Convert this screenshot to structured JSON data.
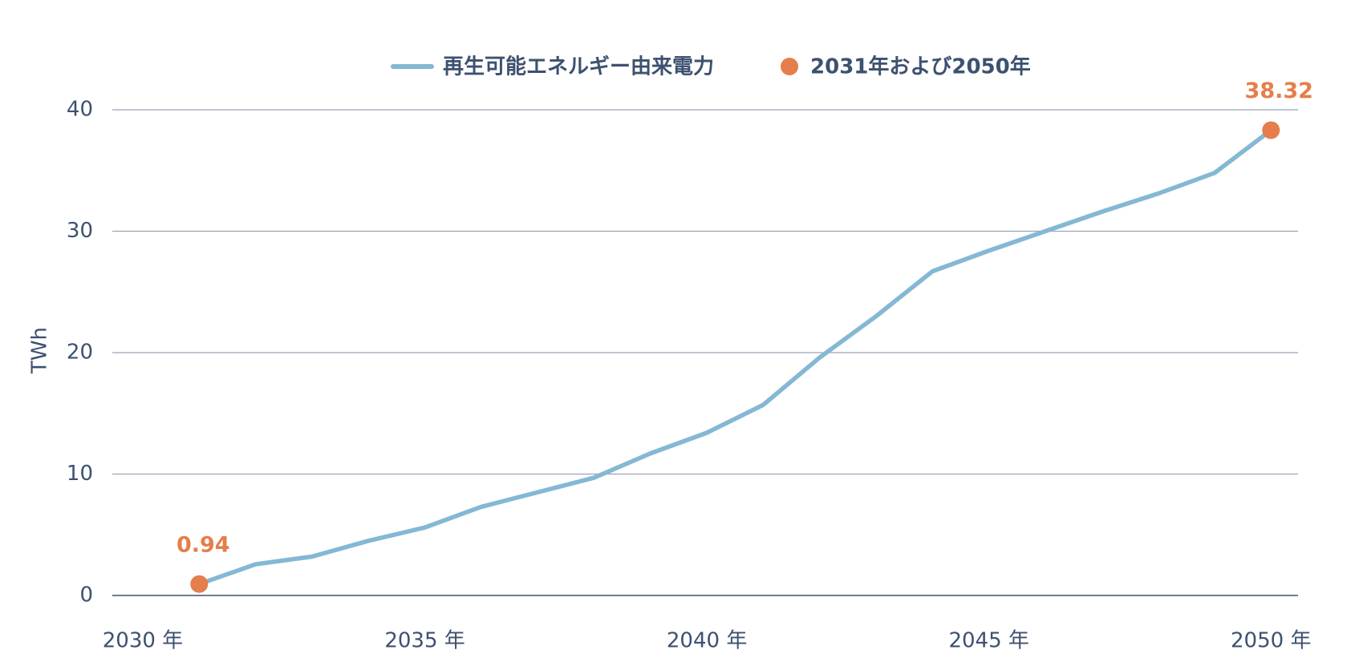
{
  "chart_data": {
    "type": "line",
    "y_label": "TWh",
    "x": [
      2031,
      2032,
      2033,
      2034,
      2035,
      2036,
      2037,
      2038,
      2039,
      2040,
      2041,
      2042,
      2043,
      2044,
      2045,
      2046,
      2047,
      2048,
      2049,
      2050
    ],
    "series": [
      {
        "name": "再生可能エネルギー由来電力",
        "color": "#84b8d4",
        "type": "line",
        "values": [
          0.94,
          2.57,
          3.2,
          4.5,
          5.6,
          7.3,
          8.5,
          9.7,
          11.7,
          13.4,
          15.7,
          19.6,
          23.0,
          26.7,
          28.4,
          30.0,
          31.6,
          33.1,
          34.8,
          38.32
        ]
      },
      {
        "name": "2031年および2050年",
        "color": "#e57e4a",
        "type": "scatter",
        "x": [
          2031,
          2050
        ],
        "values": [
          0.94,
          38.32
        ]
      }
    ],
    "xlim": [
      2029.46,
      2050.48
    ],
    "xticks": [
      {
        "value": 2030,
        "label": "2030 年"
      },
      {
        "value": 2035,
        "label": "2035 年"
      },
      {
        "value": 2040,
        "label": "2040 年"
      },
      {
        "value": 2045,
        "label": "2045 年"
      },
      {
        "value": 2050,
        "label": "2050 年"
      }
    ],
    "ylim": [
      0,
      40
    ],
    "yticks": [
      0,
      10,
      20,
      30,
      40
    ],
    "grid": true,
    "legend": "top"
  }
}
